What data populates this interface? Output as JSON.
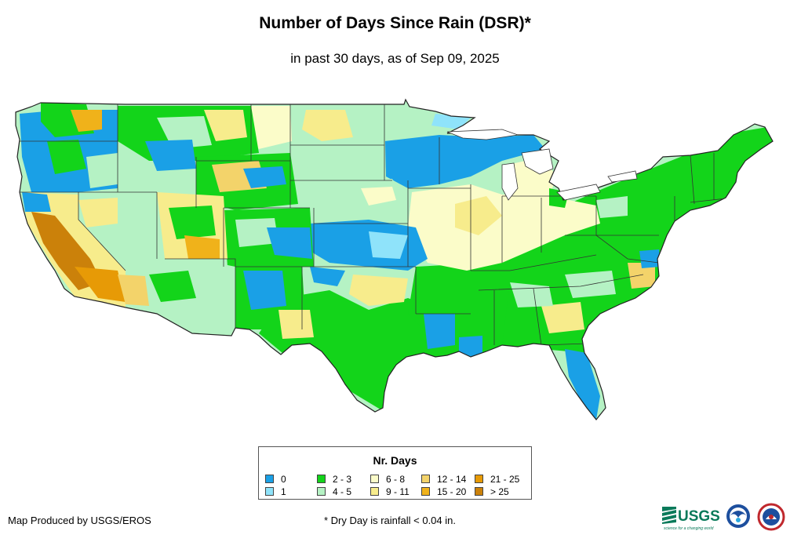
{
  "title": "Number of Days Since Rain (DSR)*",
  "subtitle": "in past 30 days, as of Sep 09, 2025",
  "legend": {
    "title": "Nr. Days",
    "items": [
      {
        "label": "0",
        "color": "#1aa0e6"
      },
      {
        "label": "1",
        "color": "#8fe3fa"
      },
      {
        "label": "2 - 3",
        "color": "#13d41a"
      },
      {
        "label": "4 - 5",
        "color": "#b5f2c4"
      },
      {
        "label": "6 - 8",
        "color": "#fbfcc9"
      },
      {
        "label": "9 - 11",
        "color": "#f7ec8c"
      },
      {
        "label": "12 - 14",
        "color": "#f3d36a"
      },
      {
        "label": "15 - 20",
        "color": "#f0b21a"
      },
      {
        "label": "21 - 25",
        "color": "#e79a06"
      },
      {
        "label": "> 25",
        "color": "#cb810a"
      }
    ]
  },
  "credit": "Map Produced by USGS/EROS",
  "footnote": "* Dry Day is rainfall < 0.04 in.",
  "logos": {
    "usgs_text": "USGS",
    "usgs_tagline": "science for a changing world"
  }
}
